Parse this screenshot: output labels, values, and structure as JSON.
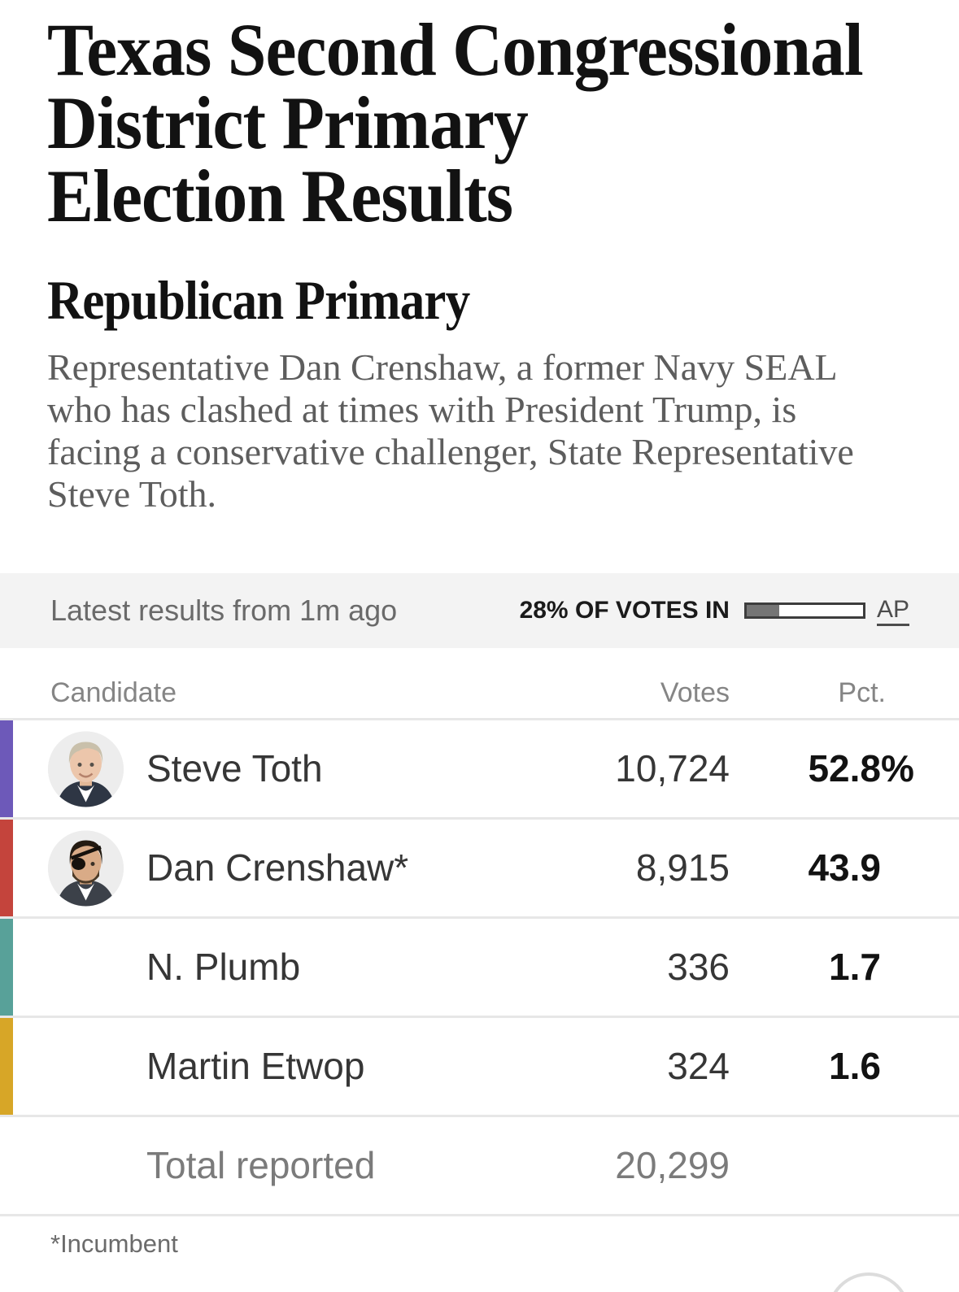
{
  "page": {
    "headline_lines": [
      "Texas Second Congressional",
      "District Primary",
      "Election Results"
    ],
    "subtitle": "Republican Primary",
    "summary_lines": [
      "Representative Dan Crenshaw, a former Navy SEAL",
      "who has clashed at times with President Trump, is",
      "facing a conservative challenger, State Representative",
      "Steve Toth."
    ],
    "footnote": "*Incumbent"
  },
  "results_bar": {
    "latest_label": "Latest results from 1m ago",
    "votes_in_label": "28% OF VOTES IN",
    "votes_in_percent": 28,
    "source_label": "AP",
    "band_bg": "#f3f3f3",
    "fill_color": "#757575"
  },
  "table": {
    "headers": {
      "candidate": "Candidate",
      "votes": "Votes",
      "pct": "Pct."
    },
    "candidates": [
      {
        "name": "Steve Toth",
        "votes": "10,724",
        "pct": "52.8",
        "pct_suffix": "%",
        "color": "#6d59b9",
        "avatar": "portrait-steve-toth"
      },
      {
        "name": "Dan Crenshaw*",
        "votes": "8,915",
        "pct": "43.9",
        "pct_suffix": "",
        "color": "#c4443c",
        "avatar": "portrait-dan-crenshaw"
      },
      {
        "name": "N. Plumb",
        "votes": "336",
        "pct": "1.7",
        "pct_suffix": "",
        "color": "#58a199",
        "avatar": null
      },
      {
        "name": "Martin Etwop",
        "votes": "324",
        "pct": "1.6",
        "pct_suffix": "",
        "color": "#d7a627",
        "avatar": null
      }
    ],
    "total": {
      "label": "Total reported",
      "votes": "20,299"
    }
  }
}
